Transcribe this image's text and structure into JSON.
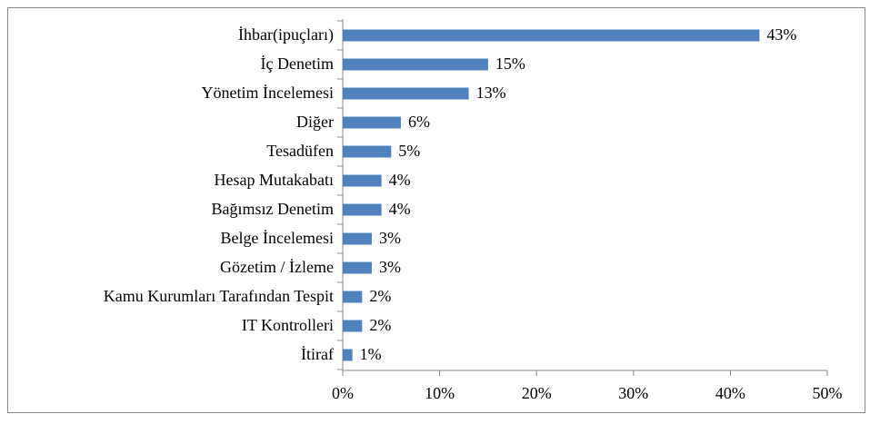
{
  "chart_data": {
    "type": "bar",
    "orientation": "horizontal",
    "categories": [
      "İhbar(ipuçları)",
      "İç Denetim",
      "Yönetim İncelemesi",
      "Diğer",
      "Tesadüfen",
      "Hesap Mutakabatı",
      "Bağımsız Denetim",
      "Belge İncelemesi",
      "Gözetim / İzleme",
      "Kamu Kurumları Tarafından Tespit",
      "IT Kontrolleri",
      "İtiraf"
    ],
    "values": [
      43,
      15,
      13,
      6,
      5,
      4,
      4,
      3,
      3,
      2,
      2,
      1
    ],
    "value_labels": [
      "43%",
      "15%",
      "13%",
      "6%",
      "5%",
      "4%",
      "4%",
      "3%",
      "3%",
      "2%",
      "2%",
      "1%"
    ],
    "color": "#4f81bd",
    "xlim": [
      0,
      50
    ],
    "xticks": [
      {
        "value": 0,
        "label": "0%"
      },
      {
        "value": 10,
        "label": "10%"
      },
      {
        "value": 20,
        "label": "20%"
      },
      {
        "value": 30,
        "label": "30%"
      },
      {
        "value": 40,
        "label": "40%"
      },
      {
        "value": 50,
        "label": "50%"
      }
    ],
    "grid": false
  }
}
